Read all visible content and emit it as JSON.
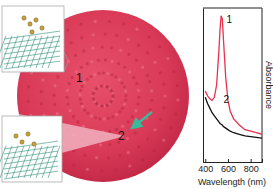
{
  "chart_data": {
    "type": "line",
    "x_label": "Wavelength (nm)",
    "y_label": "Absorbance",
    "annotations": [
      "1",
      "2"
    ],
    "x": [
      400,
      420,
      440,
      460,
      480,
      500,
      520,
      530,
      540,
      550,
      560,
      580,
      600,
      620,
      650,
      700,
      750,
      800,
      850,
      900
    ],
    "series": [
      {
        "name": "1",
        "color": "#e8314f",
        "values": [
          0.46,
          0.43,
          0.41,
          0.4,
          0.42,
          0.5,
          0.72,
          0.86,
          0.95,
          0.93,
          0.8,
          0.55,
          0.4,
          0.33,
          0.28,
          0.24,
          0.21,
          0.2,
          0.19,
          0.18
        ]
      },
      {
        "name": "2",
        "color": "#111111",
        "values": [
          0.42,
          0.38,
          0.35,
          0.32,
          0.3,
          0.28,
          0.26,
          0.25,
          0.245,
          0.24,
          0.23,
          0.22,
          0.21,
          0.2,
          0.19,
          0.18,
          0.17,
          0.165,
          0.16,
          0.155
        ]
      }
    ],
    "xlim": [
      380,
      900
    ],
    "xticks": [
      400,
      600,
      800
    ],
    "ylim": [
      0,
      1
    ],
    "tick_labels": "x"
  }
}
